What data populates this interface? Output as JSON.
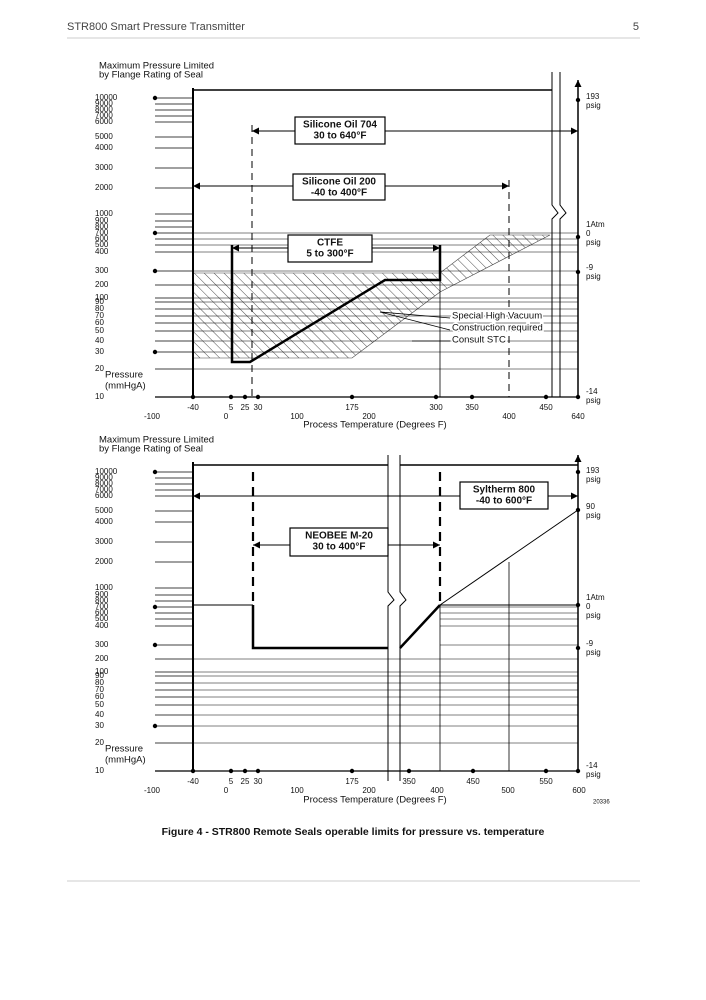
{
  "header": {
    "title": "STR800 Smart Pressure Transmitter",
    "page": "5"
  },
  "charts": [
    {
      "title_lines": [
        "Maximum Pressure Limited",
        "by Flange Rating of Seal"
      ],
      "y_label_lines": [
        "Pressure",
        "(mmHgA)"
      ],
      "x_label": "Process Temperature (Degrees F)",
      "yticks": [
        10000,
        9000,
        8000,
        7000,
        6000,
        5000,
        4000,
        3000,
        2000,
        1000,
        900,
        800,
        700,
        600,
        500,
        400,
        300,
        200,
        100,
        90,
        80,
        70,
        60,
        50,
        40,
        30,
        20,
        10
      ],
      "xticks": [
        -100,
        -40,
        0,
        5,
        25,
        30,
        100,
        175,
        200,
        300,
        350,
        400,
        450,
        640
      ],
      "right_labels": [
        [
          193,
          "psig"
        ],
        [
          "1Atm",
          0,
          "psig"
        ],
        [
          -9,
          "psig"
        ],
        [
          -14,
          "psig"
        ]
      ],
      "boxes": [
        {
          "lines": [
            "Silicone Oil 704",
            "30 to 640°F"
          ]
        },
        {
          "lines": [
            "Silicone Oil 200",
            "-40 to 400°F"
          ]
        },
        {
          "lines": [
            "CTFE",
            "5 to 300°F"
          ]
        }
      ],
      "note_lines": [
        "Special High Vacuum",
        "Construction required",
        "Consult STC"
      ]
    },
    {
      "title_lines": [
        "Maximum Pressure Limited",
        "by Flange Rating of Seal"
      ],
      "y_label_lines": [
        "Pressure",
        "(mmHgA)"
      ],
      "x_label": "Process Temperature (Degrees F)",
      "yticks": [
        10000,
        9000,
        8000,
        7000,
        6000,
        5000,
        4000,
        3000,
        2000,
        1000,
        900,
        800,
        700,
        600,
        500,
        400,
        300,
        200,
        100,
        90,
        80,
        70,
        60,
        50,
        40,
        30,
        20,
        10
      ],
      "xticks": [
        -100,
        -40,
        0,
        5,
        25,
        30,
        100,
        175,
        200,
        350,
        400,
        450,
        500,
        550,
        600
      ],
      "right_labels": [
        [
          193,
          "psig"
        ],
        [
          90,
          "psig"
        ],
        [
          "1Atm",
          0,
          "psig"
        ],
        [
          -9,
          "psig"
        ],
        [
          -14,
          "psig"
        ]
      ],
      "boxes": [
        {
          "lines": [
            "NEOBEE M-20",
            "30 to 400°F"
          ]
        },
        {
          "lines": [
            "Syltherm 800",
            "-40 to 600°F"
          ]
        }
      ],
      "drawing_id": "20336"
    }
  ],
  "caption": "Figure 4 - STR800 Remote Seals operable limits for pressure vs. temperature"
}
